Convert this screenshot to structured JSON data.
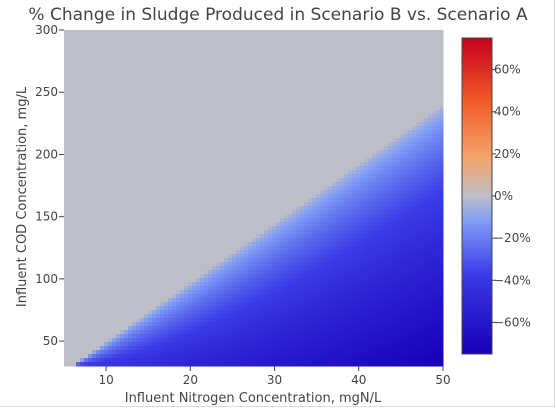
{
  "chart_data": {
    "type": "heatmap",
    "title": "% Change in Sludge Produced in Scenario B vs. Scenario A",
    "xlabel": "Influent Nitrogen Concentration, mgN/L",
    "ylabel": "Influent COD Concentration, mg/L",
    "xlim": [
      5,
      50
    ],
    "ylim": [
      30,
      300
    ],
    "x_ticks": [
      10,
      20,
      30,
      40,
      50
    ],
    "y_ticks": [
      50,
      100,
      150,
      200,
      250,
      300
    ],
    "zlim": [
      -75,
      75
    ],
    "colorbar_ticks": [
      {
        "value": 60,
        "label": "60%"
      },
      {
        "value": 40,
        "label": "40%"
      },
      {
        "value": 20,
        "label": "20%"
      },
      {
        "value": 0,
        "label": "0%"
      },
      {
        "value": -20,
        "label": "−20%"
      },
      {
        "value": -40,
        "label": "−40%"
      },
      {
        "value": -60,
        "label": "−60%"
      }
    ],
    "colorscale": [
      [
        0.0,
        "#1800b8"
      ],
      [
        0.25,
        "#3a3ae6"
      ],
      [
        0.42,
        "#7f9cf5"
      ],
      [
        0.5,
        "#bebec8"
      ],
      [
        0.62,
        "#f3a56a"
      ],
      [
        0.8,
        "#f05a28"
      ],
      [
        1.0,
        "#c8001e"
      ]
    ],
    "pattern": {
      "zero_change_boundary": [
        [
          6,
          30
        ],
        [
          50,
          240
        ]
      ],
      "values_above_boundary": 0,
      "min_value": -75,
      "min_at": [
        50,
        30
      ]
    }
  }
}
